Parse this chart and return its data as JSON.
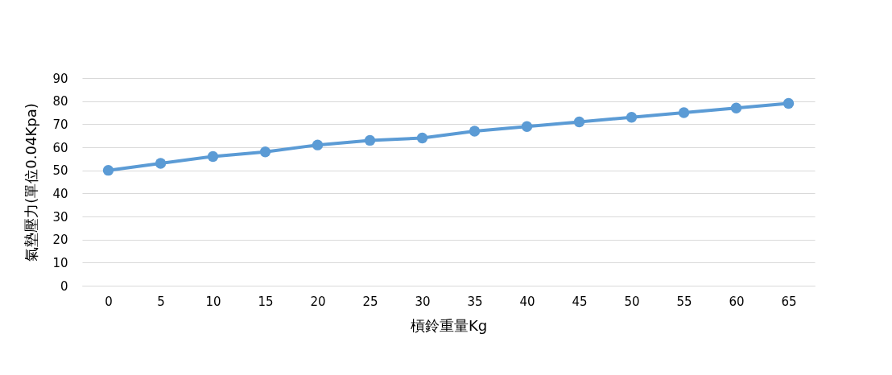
{
  "chart_data": {
    "type": "line",
    "xlabel": "槓鈴重量Kg",
    "ylabel": "氣墊壓力(單位0.04Kpa)",
    "categories": [
      "0",
      "5",
      "10",
      "15",
      "20",
      "25",
      "30",
      "35",
      "40",
      "45",
      "50",
      "55",
      "60",
      "65"
    ],
    "series": [
      {
        "color": "#5b9bd5",
        "values": [
          50,
          53,
          56,
          58,
          61,
          63,
          64,
          67,
          69,
          71,
          73,
          75,
          77,
          79
        ]
      }
    ],
    "ylim": [
      0,
      90
    ],
    "yticks": [
      0,
      10,
      20,
      30,
      40,
      50,
      60,
      70,
      80,
      90
    ],
    "grid": "y",
    "marker": "circle",
    "line_style": "solid"
  }
}
